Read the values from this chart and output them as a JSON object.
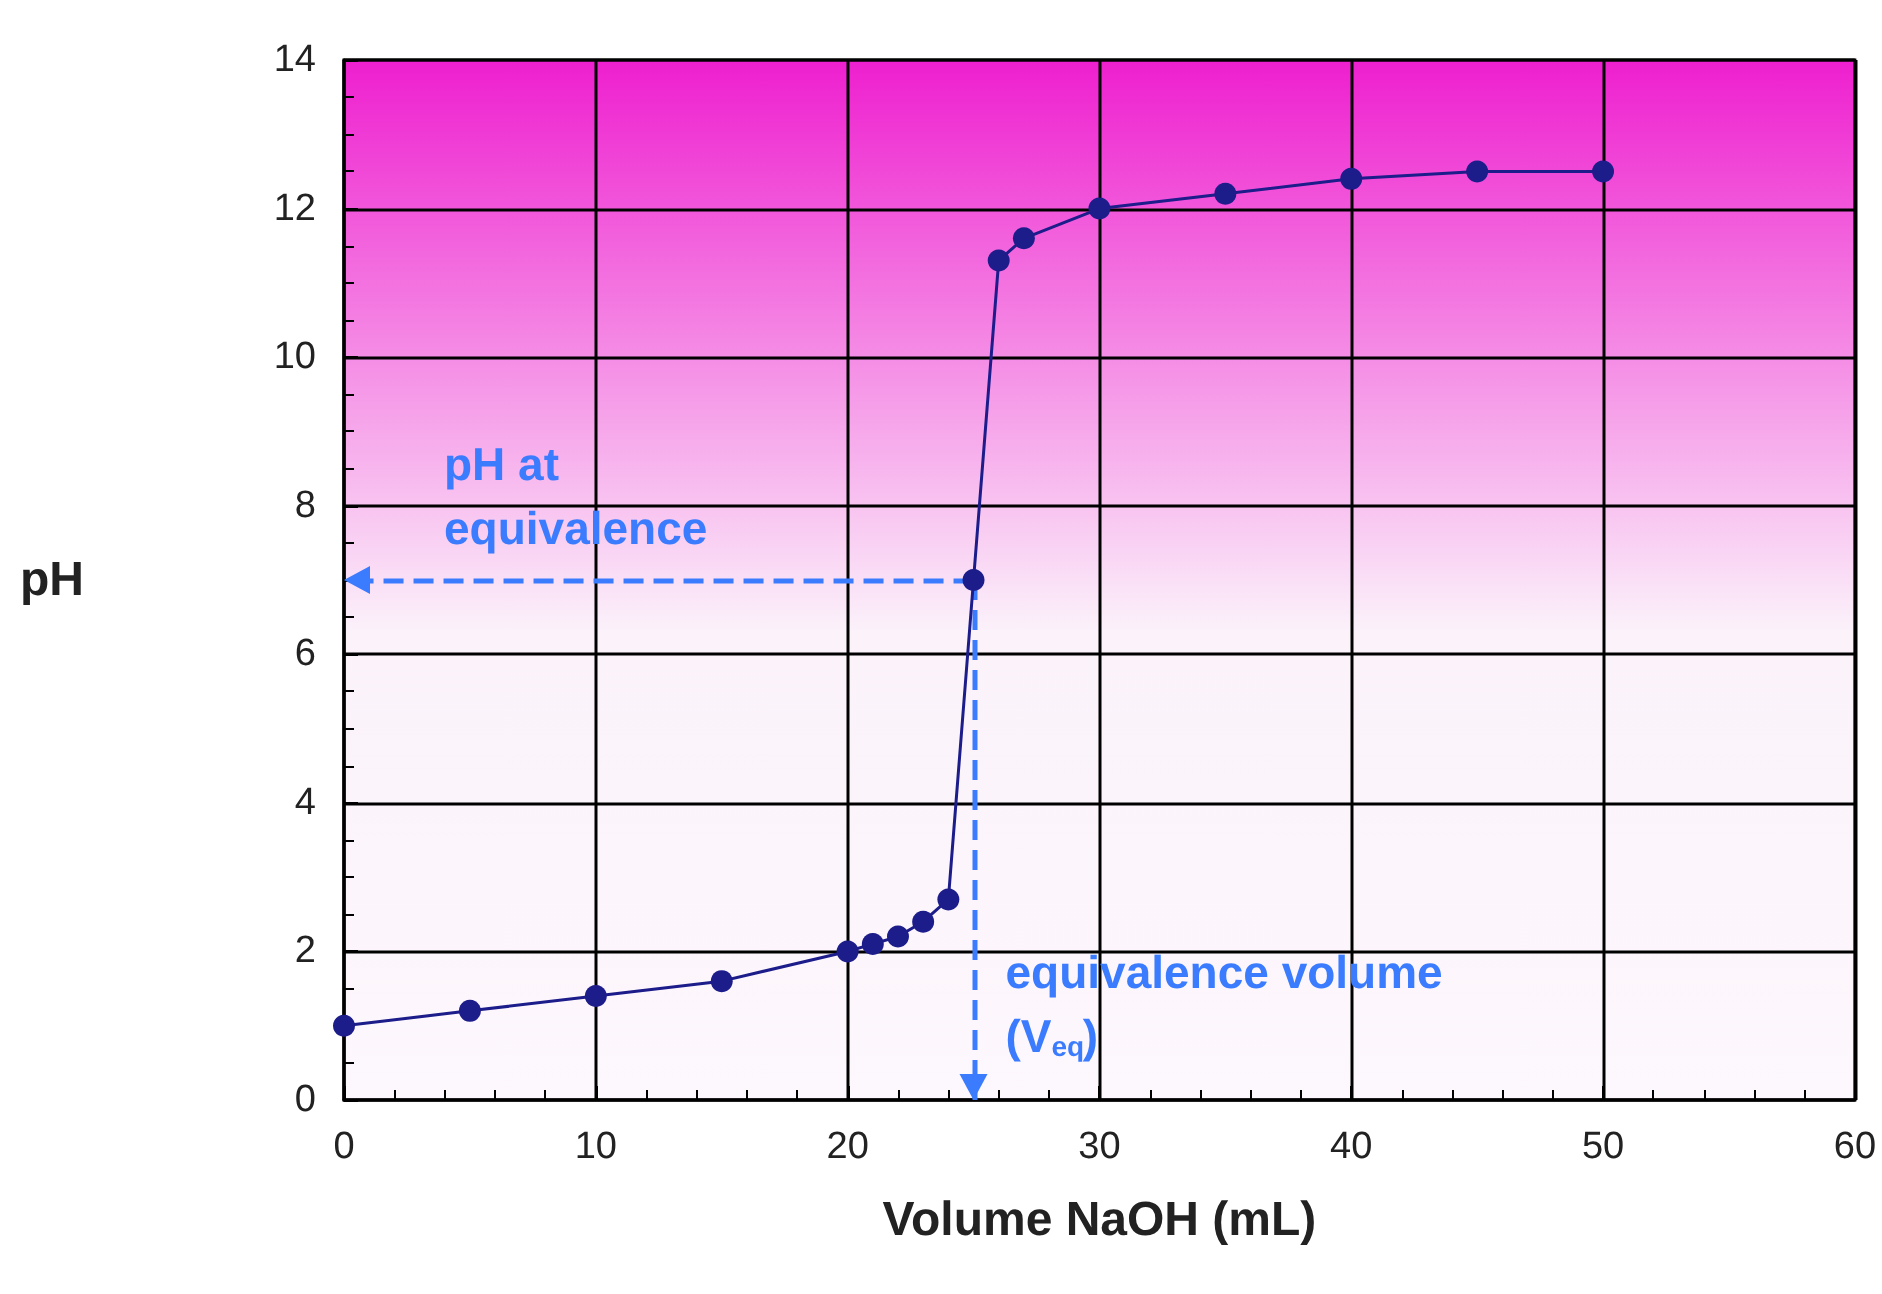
{
  "chart_data": {
    "type": "line",
    "xlabel": "Volume NaOH (mL)",
    "ylabel": "pH",
    "x": [
      0,
      5,
      10,
      15,
      20,
      21,
      22,
      23,
      24,
      25,
      26,
      27,
      30,
      35,
      40,
      45,
      50
    ],
    "series": [
      {
        "color": "#1c1c8a",
        "values": [
          1.0,
          1.2,
          1.4,
          1.6,
          2.0,
          2.1,
          2.2,
          2.4,
          2.7,
          7.0,
          11.3,
          11.6,
          12.0,
          12.2,
          12.4,
          12.5,
          12.5
        ]
      }
    ],
    "xlim": [
      0,
      60
    ],
    "xticks": [
      0,
      10,
      20,
      30,
      40,
      50,
      60
    ],
    "ylim": [
      0,
      14
    ],
    "yticks": [
      0,
      2,
      4,
      6,
      8,
      10,
      12,
      14
    ],
    "grid": true,
    "marker": "circle",
    "line_style": "solid",
    "ref_lines": [
      {
        "axis": "y",
        "value": 7,
        "label": "pH at equivalence",
        "color": "#3b7cff",
        "line_style": "dashed"
      },
      {
        "axis": "x",
        "value": 25,
        "label": "equivalence volume (V$_{eq}$)",
        "color": "#3b7cff",
        "line_style": "dashed"
      }
    ]
  }
}
